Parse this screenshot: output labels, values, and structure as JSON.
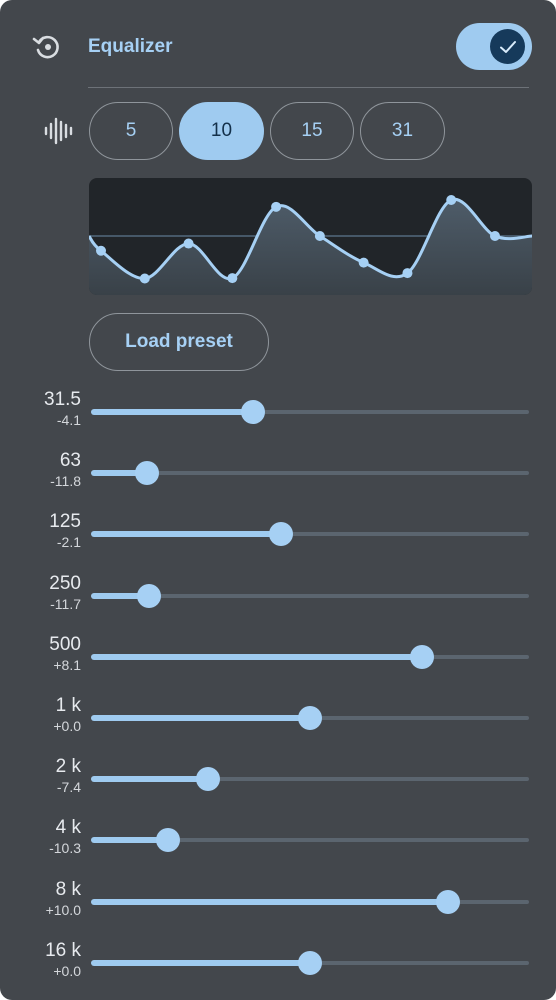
{
  "header": {
    "title": "Equalizer",
    "reset_icon": "reset-restore-icon",
    "enabled": true,
    "toggle_icon": "check-icon"
  },
  "bands_selector": {
    "icon": "sound-wave-icon",
    "options": [
      "5",
      "10",
      "15",
      "31"
    ],
    "selected": "10"
  },
  "preset": {
    "label": "Load preset"
  },
  "colors": {
    "panel": "#43474c",
    "accent": "#9fcbf0",
    "accent_text": "#a6d0f4",
    "graph_bg": "#212529",
    "track": "#5b656f"
  },
  "gain_range_db": [
    -15,
    15
  ],
  "bands": [
    {
      "freq": "31.5",
      "gain": "-4.1",
      "value": -4.1
    },
    {
      "freq": "63",
      "gain": "-11.8",
      "value": -11.8
    },
    {
      "freq": "125",
      "gain": "-2.1",
      "value": -2.1
    },
    {
      "freq": "250",
      "gain": "-11.7",
      "value": -11.7
    },
    {
      "freq": "500",
      "gain": "+8.1",
      "value": 8.1
    },
    {
      "freq": "1 k",
      "gain": "+0.0",
      "value": 0.0
    },
    {
      "freq": "2 k",
      "gain": "-7.4",
      "value": -7.4
    },
    {
      "freq": "4 k",
      "gain": "-10.3",
      "value": -10.3
    },
    {
      "freq": "8 k",
      "gain": "+10.0",
      "value": 10.0
    },
    {
      "freq": "16 k",
      "gain": "+0.0",
      "value": 0.0
    }
  ]
}
